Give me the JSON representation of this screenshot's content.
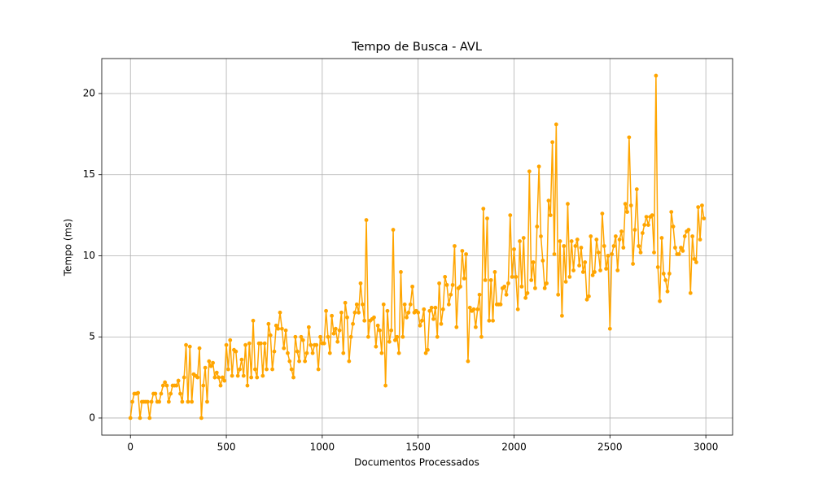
{
  "chart_data": {
    "type": "line",
    "title": "Tempo de Busca - AVL",
    "x_label": "Documentos Processados",
    "y_label": "Tempo (ms)",
    "color": "#ffa500",
    "grid": true,
    "markers": true,
    "xlim": [
      -149.5,
      3139.5
    ],
    "xticks": [
      0,
      500,
      1000,
      1500,
      2000,
      2500,
      3000
    ],
    "ylim": [
      -1.055,
      22.155
    ],
    "yticks": [
      0,
      5,
      10,
      15,
      20
    ],
    "x": [
      0,
      10,
      20,
      30,
      40,
      50,
      60,
      70,
      80,
      90,
      100,
      110,
      120,
      130,
      140,
      150,
      160,
      170,
      180,
      190,
      200,
      210,
      220,
      230,
      240,
      250,
      260,
      270,
      280,
      290,
      300,
      310,
      320,
      330,
      340,
      350,
      360,
      370,
      380,
      390,
      400,
      410,
      420,
      430,
      440,
      450,
      460,
      470,
      480,
      490,
      500,
      510,
      520,
      530,
      540,
      550,
      560,
      570,
      580,
      590,
      600,
      610,
      620,
      630,
      640,
      650,
      660,
      670,
      680,
      690,
      700,
      710,
      720,
      730,
      740,
      750,
      760,
      770,
      780,
      790,
      800,
      810,
      820,
      830,
      840,
      850,
      860,
      870,
      880,
      890,
      900,
      910,
      920,
      930,
      940,
      950,
      960,
      970,
      980,
      990,
      1000,
      1010,
      1020,
      1030,
      1040,
      1050,
      1060,
      1070,
      1080,
      1090,
      1100,
      1110,
      1120,
      1130,
      1140,
      1150,
      1160,
      1170,
      1180,
      1190,
      1200,
      1210,
      1220,
      1230,
      1240,
      1250,
      1260,
      1270,
      1280,
      1290,
      1300,
      1310,
      1320,
      1330,
      1340,
      1350,
      1360,
      1370,
      1380,
      1390,
      1400,
      1410,
      1420,
      1430,
      1440,
      1450,
      1460,
      1470,
      1480,
      1490,
      1500,
      1510,
      1520,
      1530,
      1540,
      1550,
      1560,
      1570,
      1580,
      1590,
      1600,
      1610,
      1620,
      1630,
      1640,
      1650,
      1660,
      1670,
      1680,
      1690,
      1700,
      1710,
      1720,
      1730,
      1740,
      1750,
      1760,
      1770,
      1780,
      1790,
      1800,
      1810,
      1820,
      1830,
      1840,
      1850,
      1860,
      1870,
      1880,
      1890,
      1900,
      1910,
      1920,
      1930,
      1940,
      1950,
      1960,
      1970,
      1980,
      1990,
      2000,
      2010,
      2020,
      2030,
      2040,
      2050,
      2060,
      2070,
      2080,
      2090,
      2100,
      2110,
      2120,
      2130,
      2140,
      2150,
      2160,
      2170,
      2180,
      2190,
      2200,
      2210,
      2220,
      2230,
      2240,
      2250,
      2260,
      2270,
      2280,
      2290,
      2300,
      2310,
      2320,
      2330,
      2340,
      2350,
      2360,
      2370,
      2380,
      2390,
      2400,
      2410,
      2420,
      2430,
      2440,
      2450,
      2460,
      2470,
      2480,
      2490,
      2500,
      2510,
      2520,
      2530,
      2540,
      2550,
      2560,
      2570,
      2580,
      2590,
      2600,
      2610,
      2620,
      2630,
      2640,
      2650,
      2660,
      2670,
      2680,
      2690,
      2700,
      2710,
      2720,
      2730,
      2740,
      2750,
      2760,
      2770,
      2780,
      2790,
      2800,
      2810,
      2820,
      2830,
      2840,
      2850,
      2860,
      2870,
      2880,
      2890,
      2900,
      2910,
      2920,
      2930,
      2940,
      2950,
      2960,
      2970,
      2980,
      2990
    ],
    "values": [
      0,
      1,
      1.5,
      1.5,
      1.55,
      0,
      1,
      1,
      1,
      1,
      0,
      1,
      1.5,
      1.5,
      1,
      1,
      1.5,
      2,
      2.2,
      2,
      1,
      1.5,
      2,
      2,
      2,
      2.3,
      1.5,
      1,
      2.5,
      4.5,
      1,
      4.4,
      1,
      2.7,
      2.6,
      2.5,
      4.3,
      0,
      2,
      3.1,
      1,
      3.5,
      3.2,
      3.4,
      2.5,
      2.8,
      2.5,
      2,
      2.5,
      2.3,
      4.5,
      3,
      4.8,
      2.6,
      4.2,
      4.1,
      2.6,
      3,
      3.6,
      2.6,
      4.5,
      2,
      4.6,
      2.5,
      6,
      3,
      2.5,
      4.6,
      4.6,
      2.6,
      4.6,
      3,
      5.8,
      5.1,
      3,
      4.1,
      5.7,
      5.5,
      6.5,
      5.5,
      4.3,
      5.4,
      4,
      3.5,
      3,
      2.5,
      5,
      4.1,
      3.5,
      5,
      4.8,
      3.5,
      4,
      5.6,
      4.5,
      4,
      4.5,
      4.5,
      3,
      5,
      4.6,
      4.6,
      6.6,
      5,
      4,
      6.3,
      5.2,
      5.5,
      4.7,
      5.4,
      6.5,
      4,
      7.1,
      6.2,
      3.5,
      5,
      5.8,
      6.5,
      7,
      6.5,
      8.3,
      7,
      6,
      12.2,
      5,
      6,
      6.1,
      6.2,
      4.4,
      5.7,
      5.4,
      4,
      7,
      2,
      6.6,
      4.7,
      5.4,
      11.6,
      4.8,
      5,
      4,
      9,
      5,
      7,
      6.2,
      6.5,
      7,
      8.1,
      6.5,
      6.6,
      6.5,
      5.7,
      6,
      6.7,
      4,
      4.2,
      6.6,
      6.8,
      6.1,
      6.8,
      5,
      8.3,
      5.8,
      6.7,
      8.7,
      8.2,
      7,
      7.6,
      8.2,
      10.6,
      5.6,
      8,
      8.1,
      10.3,
      8.6,
      10.1,
      3.5,
      6.8,
      6.6,
      6.7,
      5.6,
      6.7,
      7.6,
      5,
      12.9,
      8.5,
      12.3,
      6,
      8.5,
      6,
      9,
      7,
      7,
      7,
      8,
      8.1,
      7.6,
      8.3,
      12.5,
      8.7,
      10.4,
      8.7,
      6.7,
      10.9,
      8.1,
      11.1,
      7.4,
      7.7,
      15.2,
      8.5,
      9.6,
      8,
      11.8,
      15.5,
      11.2,
      9.7,
      8,
      8.3,
      13.4,
      12.5,
      17,
      10.1,
      18.1,
      7.6,
      10.9,
      6.3,
      10.6,
      8.4,
      13.2,
      8.7,
      10.9,
      9.1,
      10.6,
      11,
      9.4,
      10.5,
      9,
      9.6,
      7.3,
      7.5,
      11.2,
      8.8,
      9,
      11,
      10.2,
      9.1,
      12.6,
      10.6,
      9.2,
      10,
      5.5,
      10.1,
      10.6,
      11.2,
      9.1,
      11,
      11.5,
      10.5,
      13.2,
      12.7,
      17.3,
      13.1,
      9.5,
      11.6,
      14.1,
      10.6,
      10.2,
      11.4,
      11.9,
      12.4,
      11.9,
      12.4,
      12.5,
      10.2,
      21.1,
      9.3,
      7.2,
      11.1,
      8.9,
      8.5,
      7.8,
      8.9,
      12.7,
      11.8,
      10.5,
      10.1,
      10.1,
      10.5,
      10.3,
      11.2,
      11.5,
      11.6,
      7.7,
      11.2,
      9.8,
      9.6,
      13,
      11,
      13.1,
      12.3
    ]
  }
}
